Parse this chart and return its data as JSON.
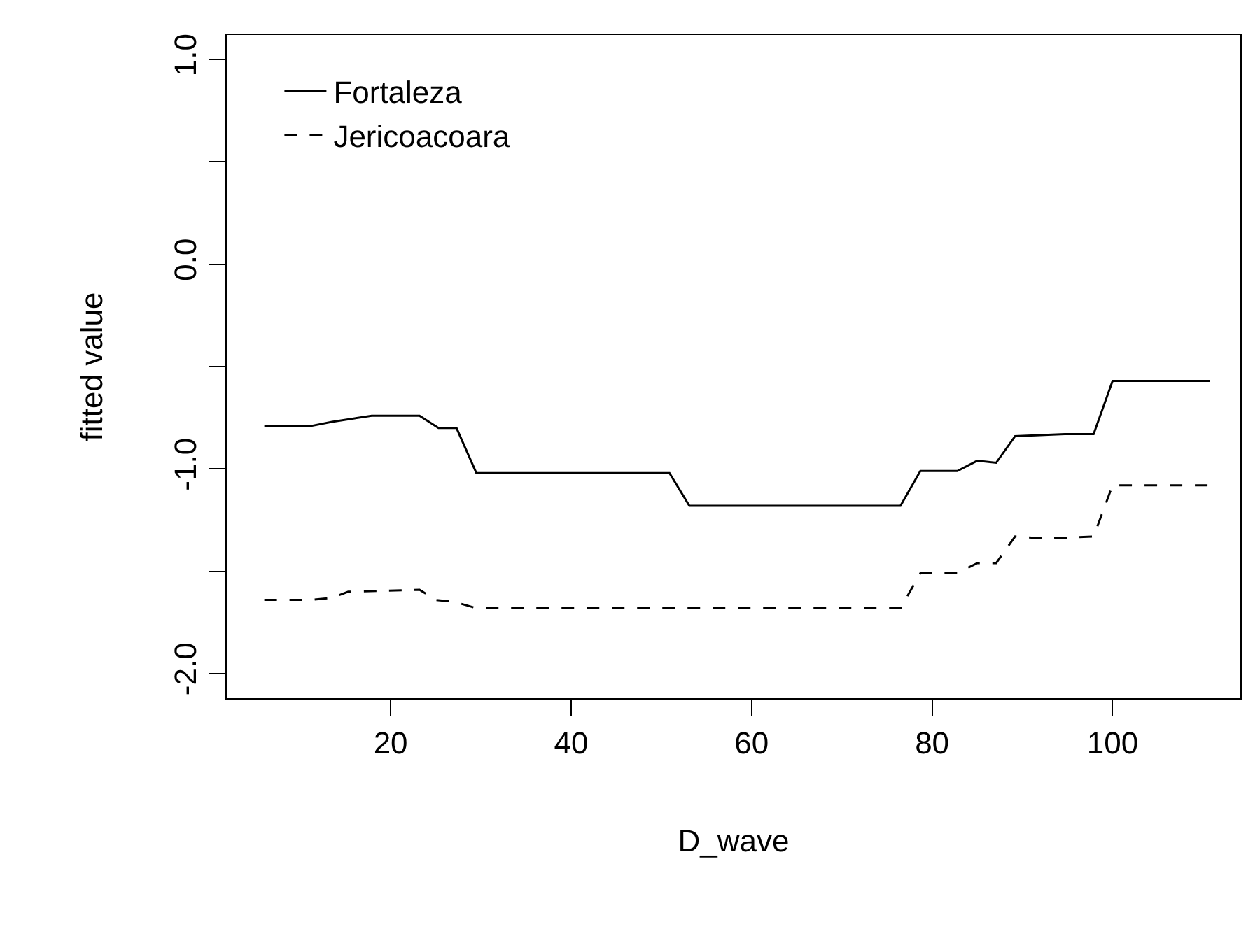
{
  "chart_data": {
    "type": "line",
    "xlabel": "D_wave",
    "ylabel": "fitted value",
    "xlim": [
      1.84,
      114.16
    ],
    "ylim": [
      -2.12,
      1.12
    ],
    "xticks": [
      20,
      40,
      60,
      80,
      100
    ],
    "yticks": [
      {
        "value": -2,
        "label": "-2.0"
      },
      {
        "value": -1.5,
        "label": null
      },
      {
        "value": -1,
        "label": "-1.0"
      },
      {
        "value": -0.5,
        "label": null
      },
      {
        "value": 0,
        "label": "0.0"
      },
      {
        "value": 0.5,
        "label": null
      },
      {
        "value": 1,
        "label": "1.0"
      }
    ],
    "grid": false,
    "legend": "top left",
    "marker": "none",
    "series": [
      {
        "name": "Fortaleza",
        "color": "#000000",
        "line_style": "solid",
        "x": [
          6.0,
          11.2,
          13.5,
          17.9,
          23.2,
          25.3,
          27.3,
          29.5,
          50.9,
          53.1,
          76.5,
          78.7,
          82.8,
          85.0,
          87.1,
          89.2,
          94.7,
          97.9,
          100.0,
          110.8
        ],
        "values": [
          -0.79,
          -0.79,
          -0.77,
          -0.74,
          -0.74,
          -0.8,
          -0.8,
          -1.02,
          -1.02,
          -1.18,
          -1.18,
          -1.01,
          -1.01,
          -0.96,
          -0.97,
          -0.84,
          -0.83,
          -0.83,
          -0.57,
          -0.57
        ]
      },
      {
        "name": "Jericoacoara",
        "color": "#000000",
        "line_style": "dashed",
        "x": [
          6.0,
          11.2,
          13.5,
          15.3,
          23.2,
          25.0,
          27.1,
          29.5,
          76.5,
          78.7,
          82.8,
          85.0,
          87.1,
          89.2,
          92.4,
          97.9,
          100.0,
          110.8
        ],
        "values": [
          -1.64,
          -1.64,
          -1.63,
          -1.6,
          -1.59,
          -1.64,
          -1.65,
          -1.68,
          -1.68,
          -1.51,
          -1.51,
          -1.46,
          -1.46,
          -1.33,
          -1.34,
          -1.33,
          -1.08,
          -1.08
        ]
      }
    ]
  }
}
